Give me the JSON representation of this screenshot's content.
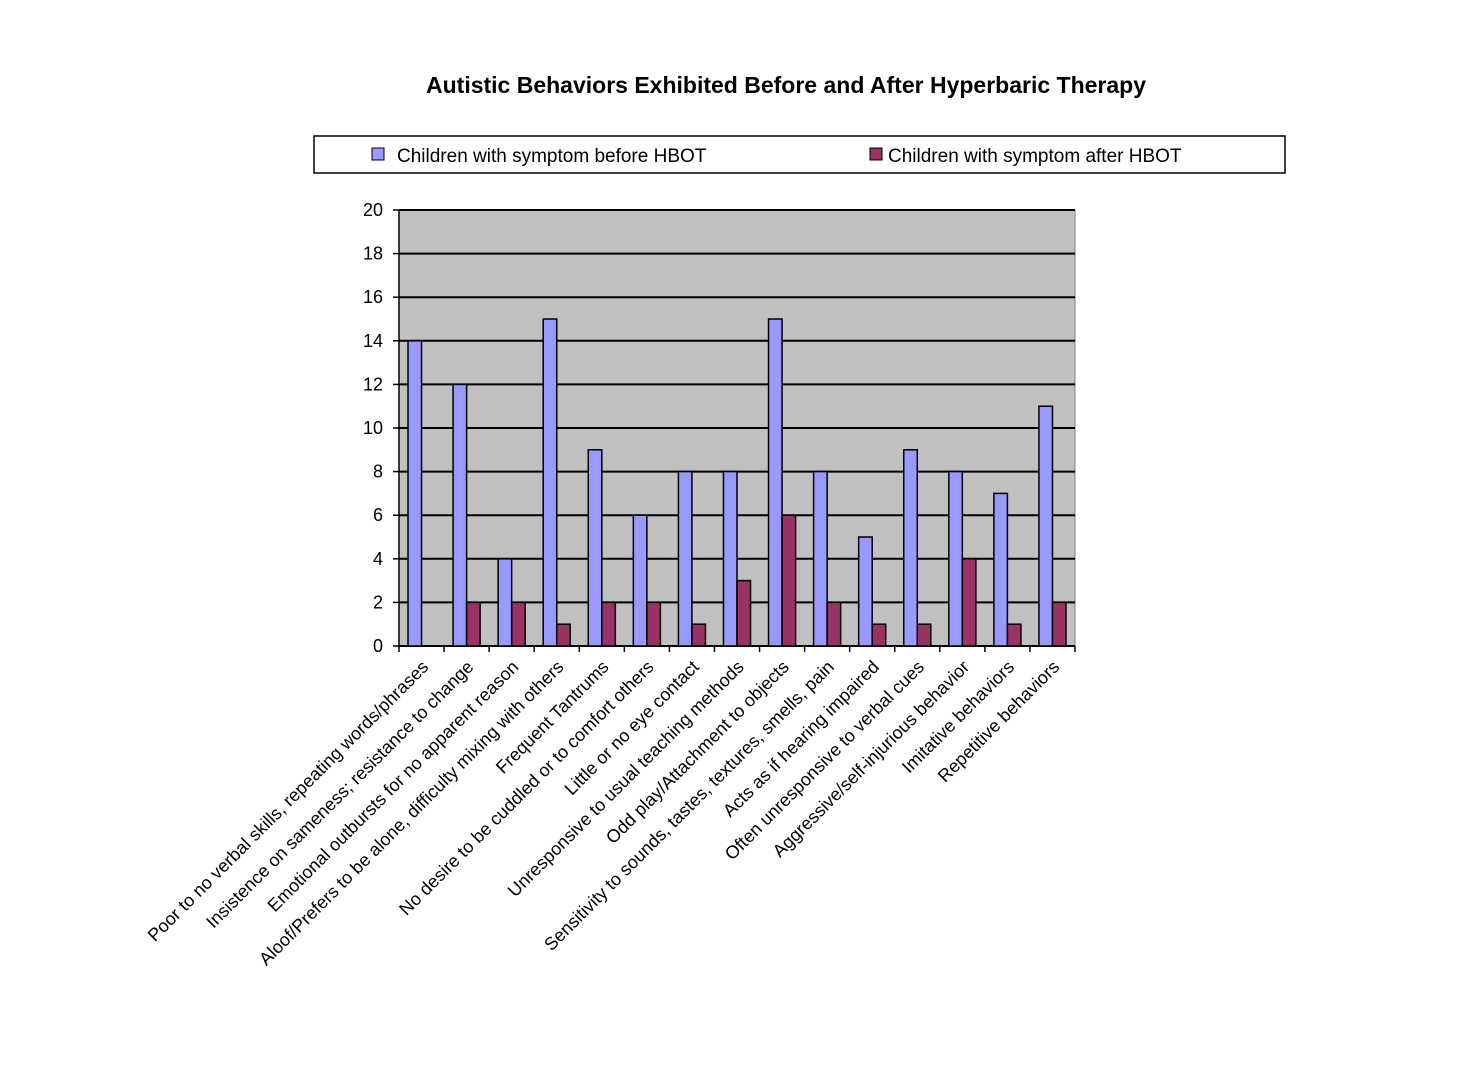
{
  "chart_data": {
    "type": "bar",
    "title": "Autistic Behaviors Exhibited  Before and After Hyperbaric Therapy",
    "xlabel": "",
    "ylabel": "",
    "ylim": [
      0,
      20
    ],
    "yticks": [
      0,
      2,
      4,
      6,
      8,
      10,
      12,
      14,
      16,
      18,
      20
    ],
    "grid": true,
    "legend_placement": "top",
    "plot_background": "#C0C0C0",
    "categories": [
      "Poor to no verbal skills, repeating words/phrases",
      "Insistence on sameness; resistance to change",
      "Emotional outbursts for no apparent reason",
      "Aloof/Prefers to be alone, difficulty mixing with others",
      "Frequent Tantrums",
      "No desire to be cuddled or to comfort others",
      "Little or no eye contact",
      "Unresponsive to usual teaching methods",
      "Odd play/Attachment to objects",
      "Sensitivity to sounds, tastes, textures, smells, pain",
      "Acts as if hearing impaired",
      "Often unresponsive to verbal cues",
      "Aggressive/self-injurious behavior",
      "Imitative behaviors",
      "Repetitive behaviors"
    ],
    "series": [
      {
        "name": "Children with symptom before HBOT",
        "color": "#9999FF",
        "values": [
          14,
          12,
          4,
          15,
          9,
          6,
          8,
          8,
          15,
          8,
          5,
          9,
          8,
          7,
          11
        ]
      },
      {
        "name": "Children with symptom after HBOT",
        "color": "#993366",
        "values": [
          0,
          2,
          2,
          1,
          2,
          2,
          1,
          3,
          6,
          2,
          1,
          1,
          4,
          1,
          2
        ]
      }
    ]
  }
}
